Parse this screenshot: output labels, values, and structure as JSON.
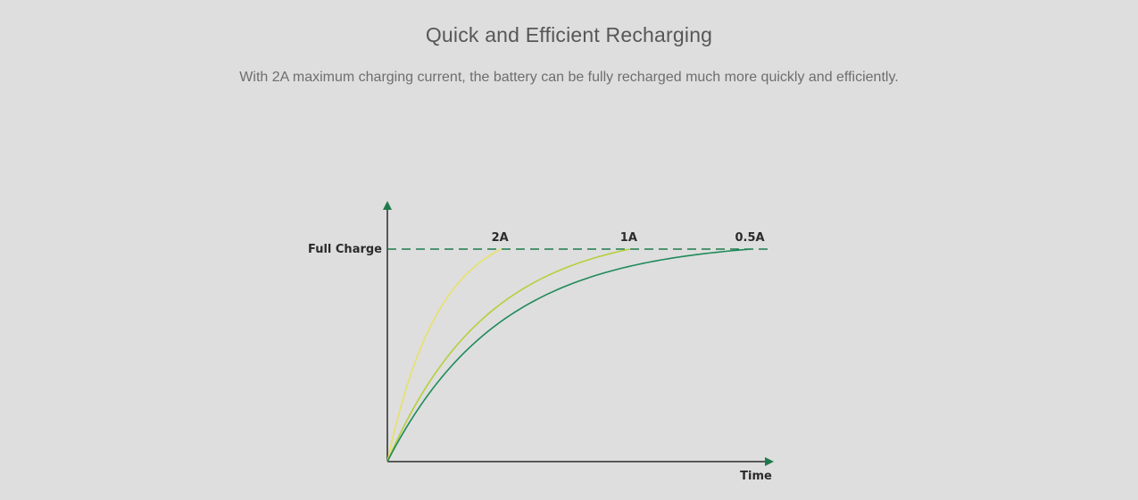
{
  "header": {
    "title": "Quick and Efficient Recharging",
    "subtitle": "With 2A maximum charging current, the battery can be fully recharged much more quickly and efficiently."
  },
  "chart_data": {
    "type": "line",
    "title": "",
    "xlabel": "Time",
    "ylabel": "",
    "reference_line": {
      "label": "Full Charge",
      "value": 1.0,
      "style": "dashed",
      "color": "#1f7a4a"
    },
    "axis_color": "#2b2b2b",
    "arrow_color": "#1f7a4a",
    "xlim": [
      0,
      1
    ],
    "ylim": [
      0,
      1
    ],
    "grid": false,
    "series": [
      {
        "name": "2A",
        "color": "#e6e16a",
        "time_to_full": 0.3,
        "curvature": 2.2
      },
      {
        "name": "1A",
        "color": "#b5cf3a",
        "time_to_full": 0.64,
        "curvature": 2.4
      },
      {
        "name": "0.5A",
        "color": "#1f8a5a",
        "time_to_full": 0.96,
        "curvature": 3.2
      }
    ]
  }
}
